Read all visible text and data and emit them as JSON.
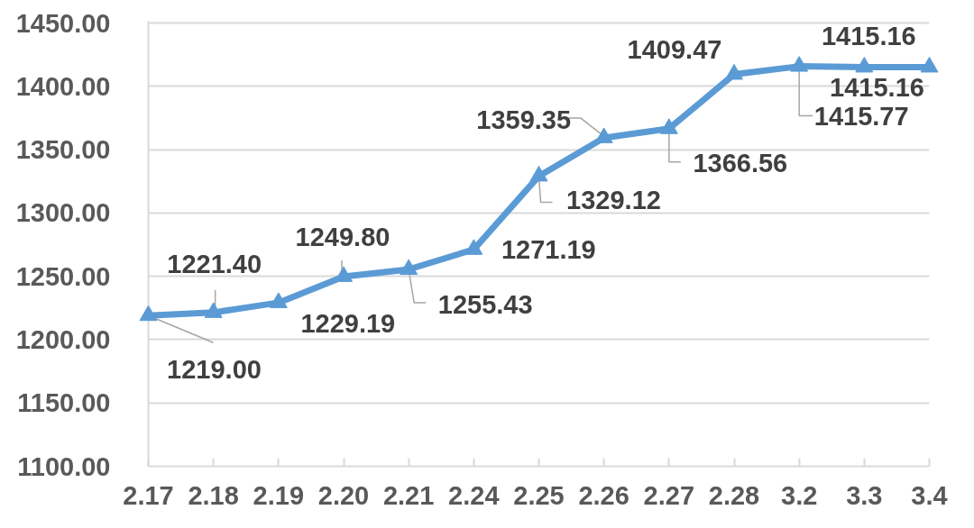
{
  "chart_data": {
    "type": "line",
    "categories": [
      "2.17",
      "2.18",
      "2.19",
      "2.20",
      "2.21",
      "2.24",
      "2.25",
      "2.26",
      "2.27",
      "2.28",
      "3.2",
      "3.3",
      "3.4"
    ],
    "series": [
      {
        "color": "#5b9bd5",
        "values": [
          1219.0,
          1221.4,
          1229.19,
          1249.8,
          1255.43,
          1271.19,
          1329.12,
          1359.35,
          1366.56,
          1409.47,
          1415.77,
          1415.16,
          1415.16
        ],
        "value_labels": [
          "1219.00",
          "1221.40",
          "1229.19",
          "1249.80",
          "1255.43",
          "1271.19",
          "1329.12",
          "1359.35",
          "1366.56",
          "1409.47",
          "1415.77",
          "1415.16",
          "1415.16"
        ]
      }
    ],
    "ylim": [
      1100,
      1450
    ],
    "yticks": [
      {
        "value": 1100,
        "label": "1100.00"
      },
      {
        "value": 1150,
        "label": "1150.00"
      },
      {
        "value": 1200,
        "label": "1200.00"
      },
      {
        "value": 1250,
        "label": "1250.00"
      },
      {
        "value": 1300,
        "label": "1300.00"
      },
      {
        "value": 1350,
        "label": "1350.00"
      },
      {
        "value": 1400,
        "label": "1400.00"
      },
      {
        "value": 1450,
        "label": "1450.00"
      }
    ],
    "grid": "y",
    "marker": "triangle",
    "line_style": "solid"
  }
}
